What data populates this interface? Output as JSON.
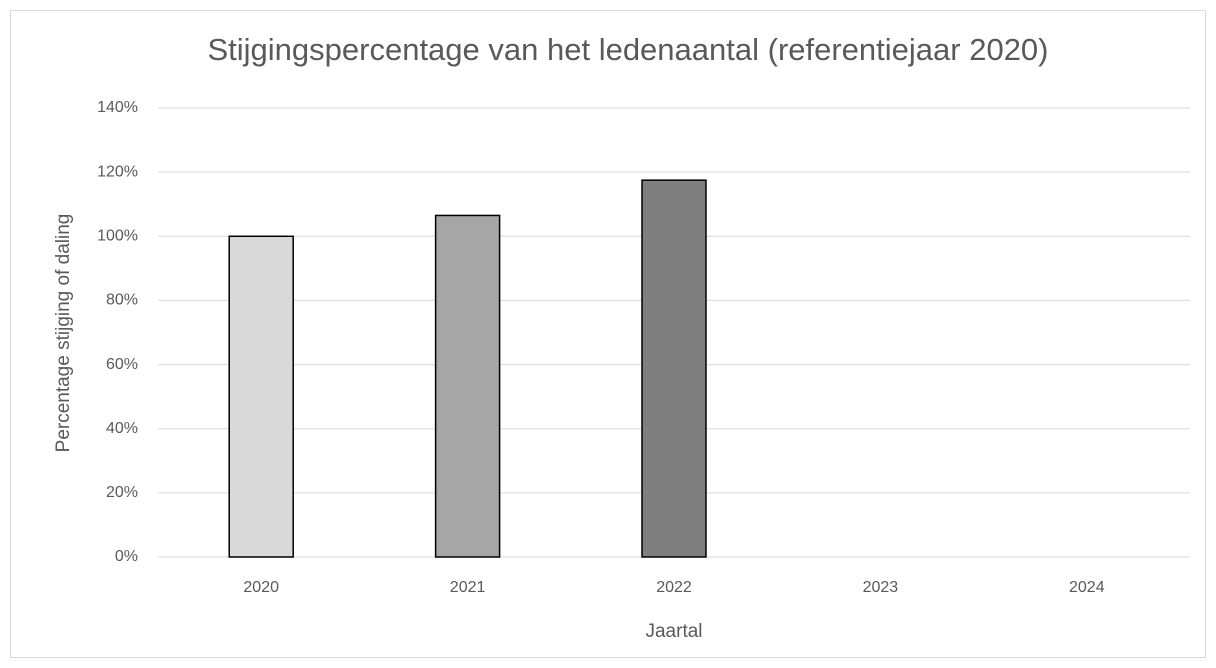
{
  "chart_data": {
    "type": "bar",
    "title": "Stijgingspercentage van het ledenaantal (referentiejaar 2020)",
    "x_label": "Jaartal",
    "y_label": "Percentage stijging of daling",
    "categories": [
      "2020",
      "2021",
      "2022",
      "2023",
      "2024"
    ],
    "values": [
      100,
      106.5,
      117.5,
      null,
      null
    ],
    "colors": [
      "#d9d9d9",
      "#a6a6a6",
      "#7f7f7f",
      null,
      null
    ],
    "ylim": [
      0,
      140
    ],
    "yticks": [
      {
        "value": 0,
        "label": "0%"
      },
      {
        "value": 20,
        "label": "20%"
      },
      {
        "value": 40,
        "label": "40%"
      },
      {
        "value": 60,
        "label": "60%"
      },
      {
        "value": 80,
        "label": "80%"
      },
      {
        "value": 100,
        "label": "100%"
      },
      {
        "value": 120,
        "label": "120%"
      },
      {
        "value": 140,
        "label": "140%"
      }
    ],
    "grid": true
  }
}
